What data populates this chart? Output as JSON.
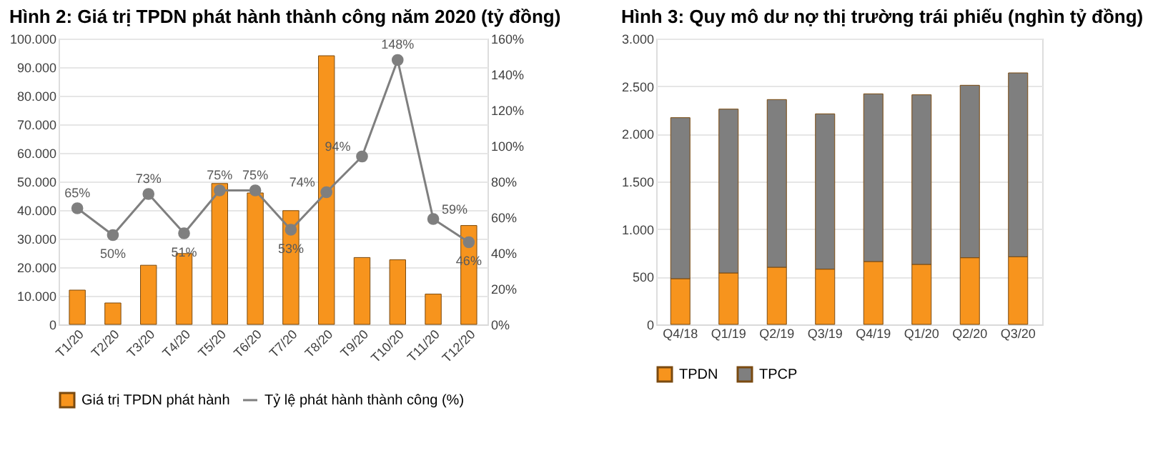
{
  "chart_data": [
    {
      "type": "bar",
      "title": "Hình 2: Giá trị TPDN phát hành thành công năm 2020 (tỷ đồng)",
      "categories": [
        "T1/20",
        "T2/20",
        "T3/20",
        "T4/20",
        "T5/20",
        "T6/20",
        "T7/20",
        "T8/20",
        "T9/20",
        "T10/20",
        "T11/20",
        "T12/20"
      ],
      "series": [
        {
          "name": "Giá trị TPDN phát hành",
          "type": "bar",
          "color": "#f7941d",
          "values": [
            12000,
            7500,
            20700,
            24800,
            49300,
            46000,
            39800,
            94000,
            23400,
            22600,
            10600,
            34600
          ]
        },
        {
          "name": "Tỷ lệ phát hành thành công (%)",
          "type": "line",
          "axis": "y2",
          "color": "#7f7f7f",
          "marker": "circle",
          "values": [
            65,
            50,
            73,
            51,
            75,
            75,
            53,
            74,
            94,
            148,
            59,
            46
          ],
          "value_labels": [
            "65%",
            "50%",
            "73%",
            "51%",
            "75%",
            "75%",
            "53%",
            "74%",
            "94%",
            "148%",
            "59%",
            "46%"
          ]
        }
      ],
      "ylim": [
        0,
        100000
      ],
      "yticks": [
        0,
        {
          "value": 10000,
          "label": "10.000"
        },
        {
          "value": 20000,
          "label": "20.000"
        },
        {
          "value": 30000,
          "label": "30.000"
        },
        {
          "value": 40000,
          "label": "40.000"
        },
        {
          "value": 50000,
          "label": "50.000"
        },
        {
          "value": 60000,
          "label": "60.000"
        },
        {
          "value": 70000,
          "label": "70.000"
        },
        {
          "value": 80000,
          "label": "80.000"
        },
        {
          "value": 90000,
          "label": "90.000"
        },
        {
          "value": 100000,
          "label": "100.000"
        }
      ],
      "y2lim": [
        0,
        160
      ],
      "y2ticks": [
        {
          "value": 0,
          "label": "0%"
        },
        {
          "value": 20,
          "label": "20%"
        },
        {
          "value": 40,
          "label": "40%"
        },
        {
          "value": 60,
          "label": "60%"
        },
        {
          "value": 80,
          "label": "80%"
        },
        {
          "value": 100,
          "label": "100%"
        },
        {
          "value": 120,
          "label": "120%"
        },
        {
          "value": 140,
          "label": "140%"
        },
        {
          "value": 160,
          "label": "160%"
        }
      ],
      "grid": "y",
      "legend": "bottom"
    },
    {
      "type": "bar",
      "stacked": true,
      "title": "Hình 3: Quy mô dư nợ thị trường trái phiếu (nghìn tỷ đồng)",
      "categories": [
        "Q4/18",
        "Q1/19",
        "Q2/19",
        "Q3/19",
        "Q4/19",
        "Q1/20",
        "Q2/20",
        "Q3/20"
      ],
      "series": [
        {
          "name": "TPDN",
          "color": "#f7941d",
          "values": [
            480,
            540,
            600,
            580,
            660,
            630,
            700,
            710
          ]
        },
        {
          "name": "TPCP",
          "color": "#7f7f7f",
          "values": [
            1690,
            1720,
            1760,
            1630,
            1760,
            1780,
            1810,
            1930
          ]
        }
      ],
      "ylim": [
        0,
        3000
      ],
      "yticks": [
        0,
        500,
        {
          "value": 1000,
          "label": "1.000"
        },
        {
          "value": 1500,
          "label": "1.500"
        },
        {
          "value": 2000,
          "label": "2.000"
        },
        {
          "value": 2500,
          "label": "2.500"
        },
        {
          "value": 3000,
          "label": "3.000"
        }
      ],
      "grid": "y",
      "legend": "bottom"
    }
  ]
}
